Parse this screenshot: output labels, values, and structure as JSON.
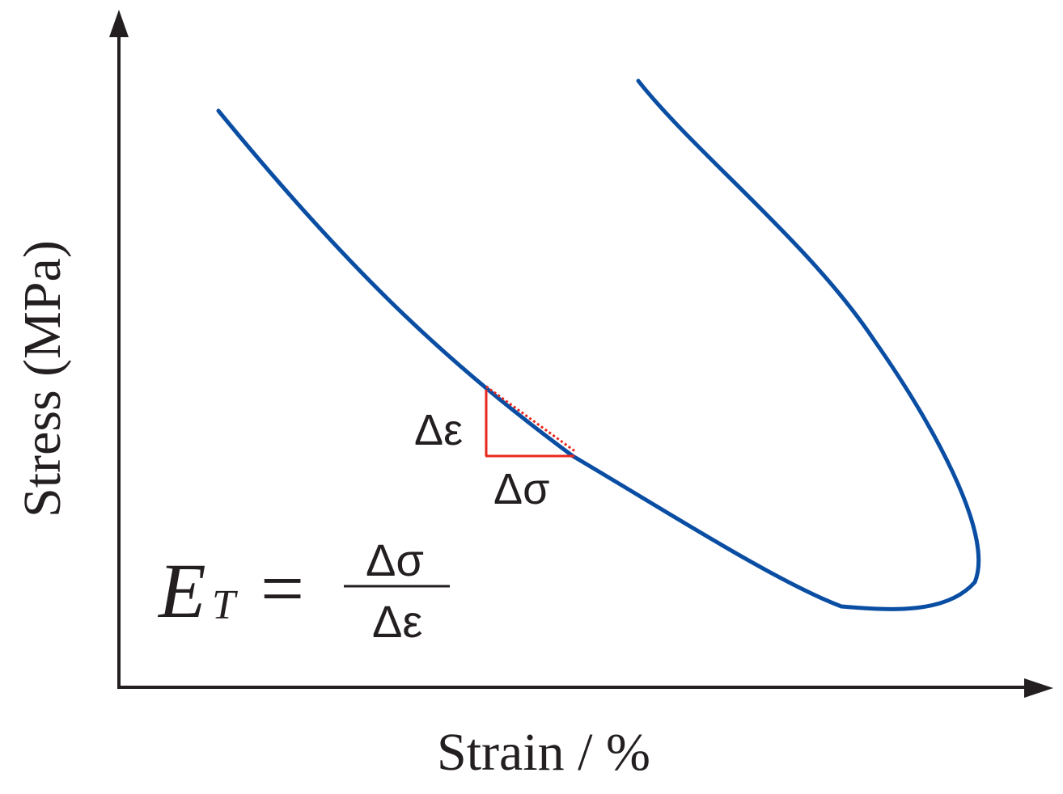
{
  "axes": {
    "y_label": "Stress (MPa)",
    "x_label": "Strain / %"
  },
  "annotations": {
    "delta_epsilon": "Δε",
    "delta_sigma": "Δσ"
  },
  "formula": {
    "lhs_symbol": "E",
    "lhs_subscript": "T",
    "equals": "=",
    "numerator": "Δσ",
    "denominator": "Δε"
  },
  "colors": {
    "curve": "#0a4ea3",
    "tangent": "#e8281e",
    "axis": "#231f20"
  }
}
